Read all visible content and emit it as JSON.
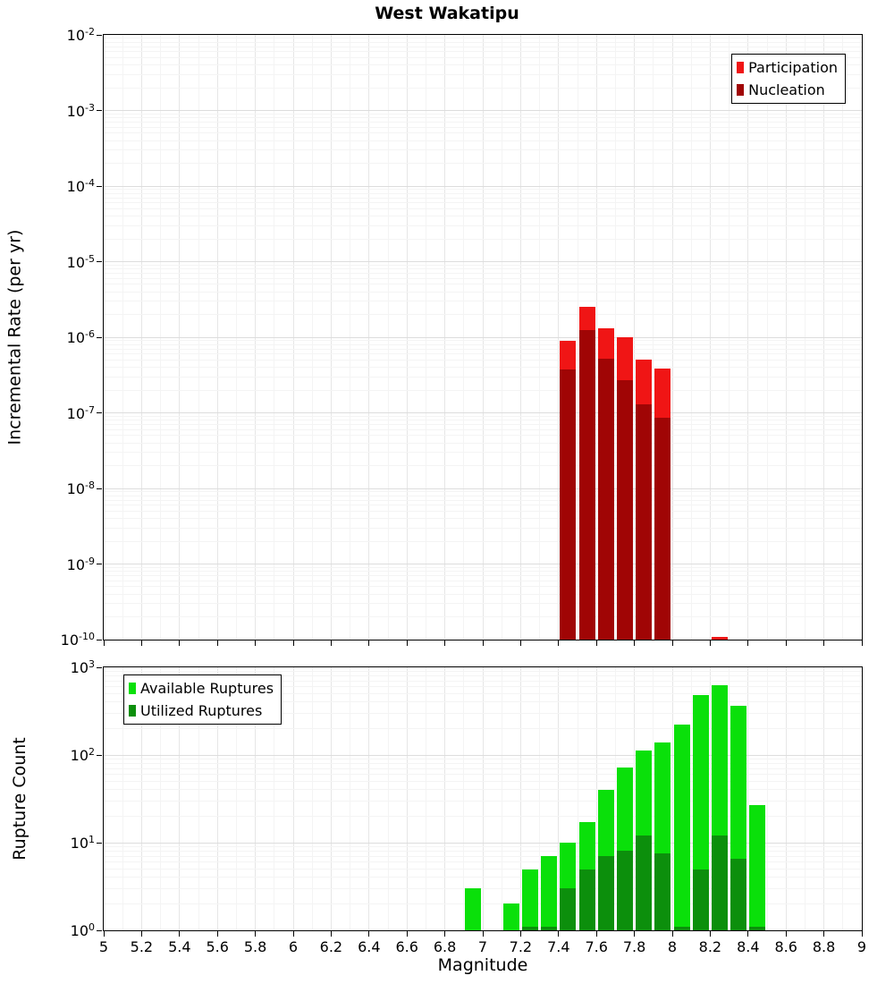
{
  "title": "West Wakatipu",
  "xlabel": "Magnitude",
  "chart_data": [
    {
      "type": "bar",
      "title": "West Wakatipu",
      "ylabel": "Incremental Rate (per yr)",
      "xlabel": "Magnitude",
      "yscale": "log",
      "x_range": [
        5,
        9
      ],
      "y_exp_range": [
        -10,
        -2
      ],
      "x_tick_step": 0.2,
      "show_x_tick_labels": false,
      "x_tick_labels": [
        "5",
        "5.2",
        "5.4",
        "5.6",
        "5.8",
        "6",
        "6.2",
        "6.4",
        "6.6",
        "6.8",
        "7",
        "7.2",
        "7.4",
        "7.6",
        "7.8",
        "8",
        "8.2",
        "8.4",
        "8.6",
        "8.8",
        "9"
      ],
      "y_tick_exponents": [
        -2,
        -3,
        -4,
        -5,
        -6,
        -7,
        -8,
        -9,
        -10
      ],
      "bar_width": 0.1,
      "grid": true,
      "legend_position": "top-right",
      "legend": [
        {
          "label": "Participation",
          "color": "#f01515"
        },
        {
          "label": "Nucleation",
          "color": "#a00505"
        }
      ],
      "series": [
        {
          "name": "Participation",
          "color": "#f01515",
          "points": [
            [
              7.4,
              9e-07
            ],
            [
              7.5,
              2.5e-06
            ],
            [
              7.6,
              1.3e-06
            ],
            [
              7.7,
              1e-06
            ],
            [
              7.8,
              5e-07
            ],
            [
              7.9,
              3.9e-07
            ],
            [
              8.2,
              1.1e-10
            ]
          ]
        },
        {
          "name": "Nucleation",
          "color": "#a00505",
          "points": [
            [
              7.4,
              3.7e-07
            ],
            [
              7.5,
              1.25e-06
            ],
            [
              7.6,
              5.2e-07
            ],
            [
              7.7,
              2.7e-07
            ],
            [
              7.8,
              1.3e-07
            ],
            [
              7.9,
              8.5e-08
            ]
          ]
        }
      ]
    },
    {
      "type": "bar",
      "title": "",
      "ylabel": "Rupture Count",
      "xlabel": "Magnitude",
      "yscale": "log",
      "x_range": [
        5,
        9
      ],
      "y_exp_range": [
        0,
        3
      ],
      "x_tick_step": 0.2,
      "show_x_tick_labels": true,
      "x_tick_labels": [
        "5",
        "5.2",
        "5.4",
        "5.6",
        "5.8",
        "6",
        "6.2",
        "6.4",
        "6.6",
        "6.8",
        "7",
        "7.2",
        "7.4",
        "7.6",
        "7.8",
        "8",
        "8.2",
        "8.4",
        "8.6",
        "8.8",
        "9"
      ],
      "y_tick_exponents": [
        3,
        2,
        1,
        0
      ],
      "bar_width": 0.1,
      "grid": true,
      "legend_position": "top-left",
      "legend": [
        {
          "label": "Available Ruptures",
          "color": "#0ae00a"
        },
        {
          "label": "Utilized Ruptures",
          "color": "#0c8f0c"
        }
      ],
      "series": [
        {
          "name": "Available Ruptures",
          "color": "#0ae00a",
          "points": [
            [
              6.9,
              3
            ],
            [
              7.1,
              2
            ],
            [
              7.2,
              5
            ],
            [
              7.3,
              7
            ],
            [
              7.4,
              10
            ],
            [
              7.5,
              17
            ],
            [
              7.6,
              40
            ],
            [
              7.7,
              72
            ],
            [
              7.8,
              113
            ],
            [
              7.9,
              140
            ],
            [
              8.0,
              220
            ],
            [
              8.1,
              480
            ],
            [
              8.2,
              620
            ],
            [
              8.3,
              360
            ],
            [
              8.4,
              27
            ]
          ]
        },
        {
          "name": "Utilized Ruptures",
          "color": "#0c8f0c",
          "points": [
            [
              7.2,
              1.1
            ],
            [
              7.3,
              1.1
            ],
            [
              7.4,
              3
            ],
            [
              7.5,
              5
            ],
            [
              7.6,
              7
            ],
            [
              7.7,
              8
            ],
            [
              7.8,
              12
            ],
            [
              7.9,
              7.5
            ],
            [
              8.0,
              1.1
            ],
            [
              8.1,
              5
            ],
            [
              8.2,
              12
            ],
            [
              8.3,
              6.5
            ],
            [
              8.4,
              1.1
            ]
          ]
        }
      ]
    }
  ]
}
